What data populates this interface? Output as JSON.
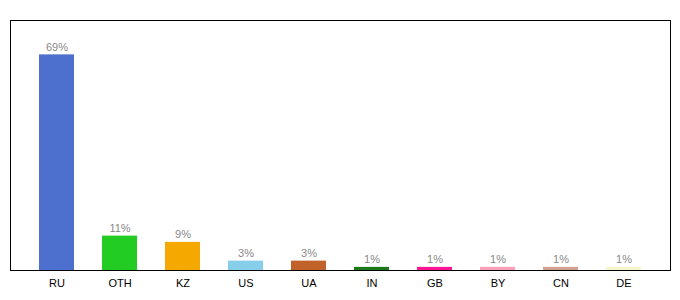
{
  "chart_data": {
    "type": "bar",
    "categories": [
      "RU",
      "OTH",
      "KZ",
      "US",
      "UA",
      "IN",
      "GB",
      "BY",
      "CN",
      "DE"
    ],
    "values": [
      69,
      11,
      9,
      3,
      3,
      1,
      1,
      1,
      1,
      1
    ],
    "value_labels": [
      "69%",
      "11%",
      "9%",
      "3%",
      "3%",
      "1%",
      "1%",
      "1%",
      "1%",
      "1%"
    ],
    "colors": [
      "#4d6fcd",
      "#22cc22",
      "#f5a800",
      "#87ceeb",
      "#c0622a",
      "#1a7a1a",
      "#ff1493",
      "#ff9eb5",
      "#d2a090",
      "#f5f5d0"
    ],
    "ylim": [
      0,
      80
    ],
    "yticks": [],
    "grid": false,
    "data_labels": true,
    "tick_labels": "x"
  }
}
